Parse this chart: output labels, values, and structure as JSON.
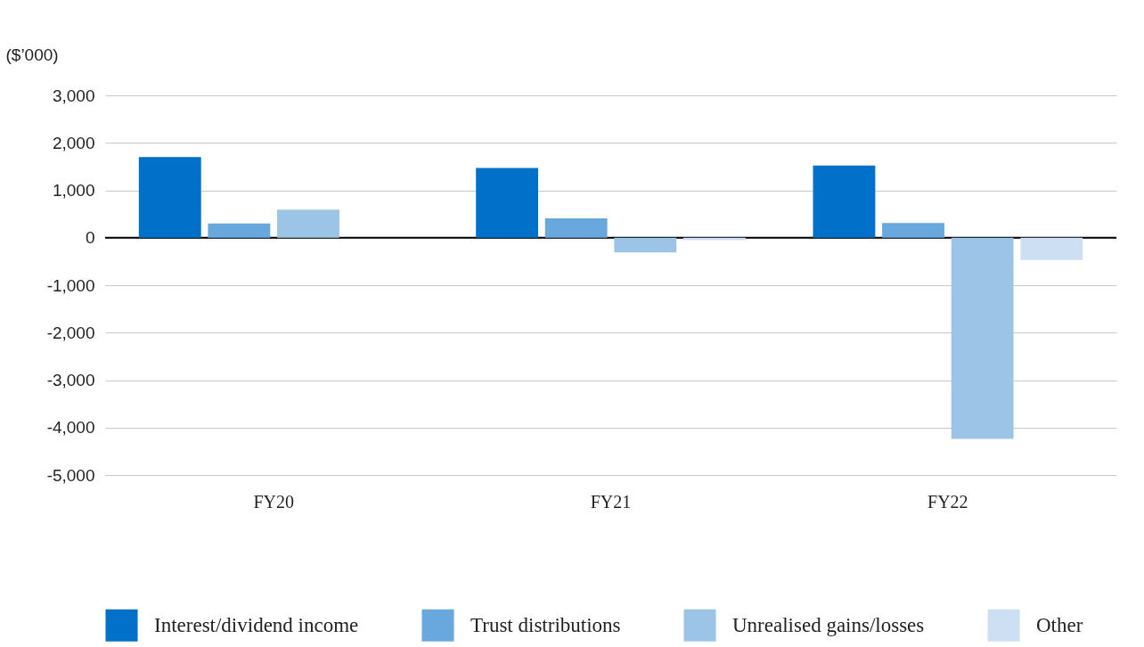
{
  "chart_data": {
    "type": "bar",
    "ylabel": "($’000)",
    "categories": [
      "FY20",
      "FY21",
      "FY22"
    ],
    "series": [
      {
        "name": "Interest/dividend income",
        "color": "#0070c9",
        "values": [
          1700,
          1470,
          1520
        ]
      },
      {
        "name": "Trust distributions",
        "color": "#69a8dd",
        "values": [
          300,
          410,
          310
        ]
      },
      {
        "name": "Unrealised gains/losses",
        "color": "#9cc4e6",
        "values": [
          590,
          -310,
          -4240
        ]
      },
      {
        "name": "Other",
        "color": "#cde0f3",
        "values": [
          null,
          -50,
          -470
        ]
      }
    ],
    "ylim": [
      -5000,
      3000
    ],
    "yticks": [
      {
        "value": 3000,
        "label": "3,000"
      },
      {
        "value": 2000,
        "label": "2,000"
      },
      {
        "value": 1000,
        "label": "1,000"
      },
      {
        "value": 0,
        "label": "0"
      },
      {
        "value": -1000,
        "label": "-1,000"
      },
      {
        "value": -2000,
        "label": "-2,000"
      },
      {
        "value": -3000,
        "label": "-3,000"
      },
      {
        "value": -4000,
        "label": "-4,000"
      },
      {
        "value": -5000,
        "label": "-5,000"
      }
    ],
    "grid": "y",
    "legend": "bottom",
    "ref_lines": [
      {
        "axis": "y",
        "value": 0,
        "color": "#000000"
      }
    ]
  }
}
